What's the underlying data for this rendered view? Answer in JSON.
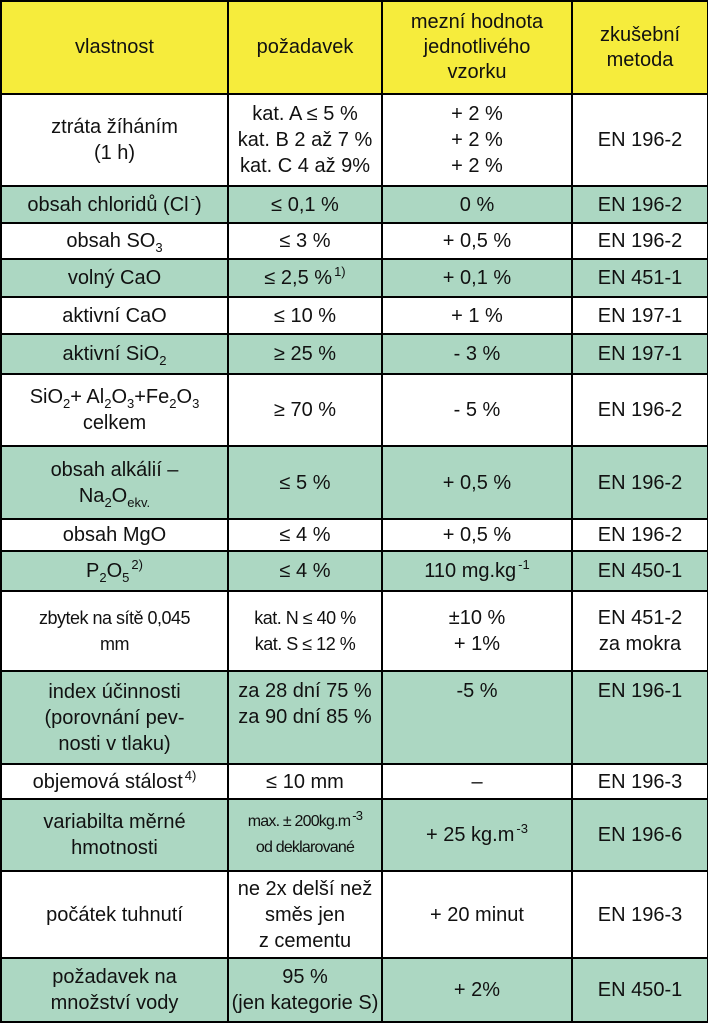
{
  "table": {
    "header": [
      [
        [
          "vlastnost"
        ]
      ],
      [
        [
          "požadavek"
        ]
      ],
      [
        [
          "mezní hodnota"
        ],
        [
          "jednotlivého"
        ],
        [
          "vzorku"
        ]
      ],
      [
        [
          "zkušební"
        ],
        [
          "metoda"
        ]
      ]
    ],
    "rows": [
      [
        [
          [
            "ztráta žíháním"
          ],
          [
            "(1 h)"
          ]
        ],
        [
          [
            "kat. A  ≤ 5 %"
          ],
          [
            "kat. B 2 až 7 %"
          ],
          [
            "kat. C 4 až 9%"
          ]
        ],
        [
          [
            "+ 2 %"
          ],
          [
            "+ 2 %"
          ],
          [
            "+ 2 %"
          ]
        ],
        [
          [
            "EN 196-2"
          ]
        ]
      ],
      [
        [
          [
            "obsah chloridů (Cl",
            {
              "sup": "-"
            },
            ")"
          ]
        ],
        [
          [
            "≤ 0,1 %"
          ]
        ],
        [
          [
            "0 %"
          ]
        ],
        [
          [
            "EN 196-2"
          ]
        ]
      ],
      [
        [
          [
            "obsah SO",
            {
              "sub": "3"
            }
          ]
        ],
        [
          [
            "≤ 3 %"
          ]
        ],
        [
          [
            "+ 0,5 %"
          ]
        ],
        [
          [
            "EN 196-2"
          ]
        ]
      ],
      [
        [
          [
            "volný CaO"
          ]
        ],
        [
          [
            "≤ 2,5 %",
            {
              "sup": "1)"
            }
          ]
        ],
        [
          [
            "+ 0,1 %"
          ]
        ],
        [
          [
            "EN 451-1"
          ]
        ]
      ],
      [
        [
          [
            "aktivní CaO"
          ]
        ],
        [
          [
            "≤ 10 %"
          ]
        ],
        [
          [
            "+ 1 %"
          ]
        ],
        [
          [
            "EN 197-1"
          ]
        ]
      ],
      [
        [
          [
            "aktivní SiO",
            {
              "sub": "2"
            }
          ]
        ],
        [
          [
            "≥ 25 %"
          ]
        ],
        [
          [
            "- 3 %"
          ]
        ],
        [
          [
            "EN 197-1"
          ]
        ]
      ],
      [
        [
          [
            "SiO",
            {
              "sub": "2"
            },
            "+ Al",
            {
              "sub": "2"
            },
            "O",
            {
              "sub": "3"
            },
            "+Fe",
            {
              "sub": "2"
            },
            "O",
            {
              "sub": "3"
            }
          ],
          [
            "celkem"
          ]
        ],
        [
          [
            "≥ 70 %"
          ]
        ],
        [
          [
            "- 5 %"
          ]
        ],
        [
          [
            "EN 196-2"
          ]
        ]
      ],
      [
        [
          [
            "obsah alkálií –"
          ],
          [
            "Na",
            {
              "sub": "2"
            },
            "O",
            {
              "sub": "ekv."
            }
          ]
        ],
        [
          [
            "≤ 5 %"
          ]
        ],
        [
          [
            "+ 0,5 %"
          ]
        ],
        [
          [
            "EN 196-2"
          ]
        ]
      ],
      [
        [
          [
            "obsah MgO"
          ]
        ],
        [
          [
            "≤ 4 %"
          ]
        ],
        [
          [
            "+ 0,5 %"
          ]
        ],
        [
          [
            "EN 196-2"
          ]
        ]
      ],
      [
        [
          [
            "P",
            {
              "sub": "2"
            },
            "O",
            {
              "sub": "5"
            },
            {
              "sup": "2)"
            }
          ]
        ],
        [
          [
            "≤ 4 %"
          ]
        ],
        [
          [
            "110 mg.kg",
            {
              "sup": "-1"
            }
          ]
        ],
        [
          [
            "EN 450-1"
          ]
        ]
      ],
      [
        [
          [
            "zbytek na sítě 0,045"
          ],
          [
            "mm"
          ]
        ],
        [
          [
            "kat. N ≤ 40 %"
          ],
          [
            "kat. S ≤ 12 %"
          ]
        ],
        [
          [
            "±10 %"
          ],
          [
            "+ 1%"
          ]
        ],
        [
          [
            "EN 451-2"
          ],
          [
            "za mokra"
          ]
        ]
      ],
      [
        [
          [
            "index účinnosti"
          ],
          [
            "(porovnání pev-"
          ],
          [
            "nosti v tlaku)"
          ]
        ],
        [
          [
            "za 28 dní 75 %"
          ],
          [
            "za 90 dní 85 %"
          ]
        ],
        [
          [
            "-5 %"
          ]
        ],
        [
          [
            "EN 196-1"
          ]
        ]
      ],
      [
        [
          [
            "objemová stálost",
            {
              "sup": "4)"
            }
          ]
        ],
        [
          [
            "≤ 10 mm"
          ]
        ],
        [
          [
            "–"
          ]
        ],
        [
          [
            "EN 196-3"
          ]
        ]
      ],
      [
        [
          [
            "variabilta měrné"
          ],
          [
            "hmotnosti"
          ]
        ],
        [
          [
            "max. ± 200kg.m",
            {
              "sup": "-3"
            }
          ],
          [
            "od deklarované"
          ]
        ],
        [
          [
            "+ 25 kg.m",
            {
              "sup": "-3"
            }
          ]
        ],
        [
          [
            "EN 196-6"
          ]
        ]
      ],
      [
        [
          [
            "počátek tuhnutí"
          ]
        ],
        [
          [
            "ne 2x delší než"
          ],
          [
            "směs jen"
          ],
          [
            "z cementu"
          ]
        ],
        [
          [
            "+ 20 minut"
          ]
        ],
        [
          [
            "EN 196-3"
          ]
        ]
      ],
      [
        [
          [
            "požadavek na"
          ],
          [
            "množství vody"
          ]
        ],
        [
          [
            "95 %"
          ],
          [
            "(jen kategorie S)"
          ]
        ],
        [
          [
            "+ 2%"
          ]
        ],
        [
          [
            "EN 450-1"
          ]
        ]
      ]
    ]
  }
}
